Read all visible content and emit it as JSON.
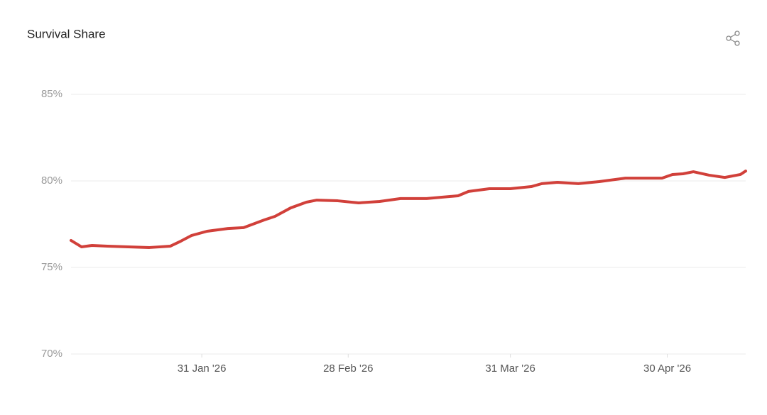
{
  "chart_data": {
    "type": "line",
    "title": "Survival Share",
    "x": [
      "2026-01-06",
      "2026-01-08",
      "2026-01-10",
      "2026-01-13",
      "2026-01-17",
      "2026-01-21",
      "2026-01-25",
      "2026-01-27",
      "2026-01-29",
      "2026-02-01",
      "2026-02-05",
      "2026-02-08",
      "2026-02-12",
      "2026-02-14",
      "2026-02-17",
      "2026-02-20",
      "2026-02-22",
      "2026-02-26",
      "2026-03-02",
      "2026-03-06",
      "2026-03-10",
      "2026-03-15",
      "2026-03-21",
      "2026-03-23",
      "2026-03-27",
      "2026-03-31",
      "2026-04-04",
      "2026-04-06",
      "2026-04-09",
      "2026-04-13",
      "2026-04-17",
      "2026-04-22",
      "2026-04-26",
      "2026-04-29",
      "2026-05-01",
      "2026-05-03",
      "2026-05-05",
      "2026-05-08",
      "2026-05-11",
      "2026-05-14",
      "2026-05-15"
    ],
    "series": [
      {
        "name": "Survival Share",
        "color": "#d1403a",
        "values": [
          76.56,
          76.19,
          76.27,
          76.23,
          76.19,
          76.15,
          76.23,
          76.52,
          76.84,
          77.09,
          77.25,
          77.3,
          77.75,
          77.95,
          78.44,
          78.77,
          78.89,
          78.85,
          78.73,
          78.81,
          78.98,
          78.98,
          79.14,
          79.39,
          79.55,
          79.55,
          79.67,
          79.84,
          79.92,
          79.84,
          79.96,
          80.16,
          80.16,
          80.16,
          80.37,
          80.41,
          80.53,
          80.33,
          80.2,
          80.37,
          80.57
        ]
      }
    ],
    "xlim": [
      "2026-01-06",
      "2026-05-15"
    ],
    "xticks": [
      {
        "value": "2026-01-31",
        "label": "31 Jan '26"
      },
      {
        "value": "2026-02-28",
        "label": "28 Feb '26"
      },
      {
        "value": "2026-03-31",
        "label": "31 Mar '26"
      },
      {
        "value": "2026-04-30",
        "label": "30 Apr '26"
      }
    ],
    "ylim": [
      70,
      85
    ],
    "yticks": [
      {
        "value": 70,
        "label": "70%"
      },
      {
        "value": 75,
        "label": "75%"
      },
      {
        "value": 80,
        "label": "80%"
      },
      {
        "value": 85,
        "label": "85%"
      }
    ],
    "grid": true
  }
}
